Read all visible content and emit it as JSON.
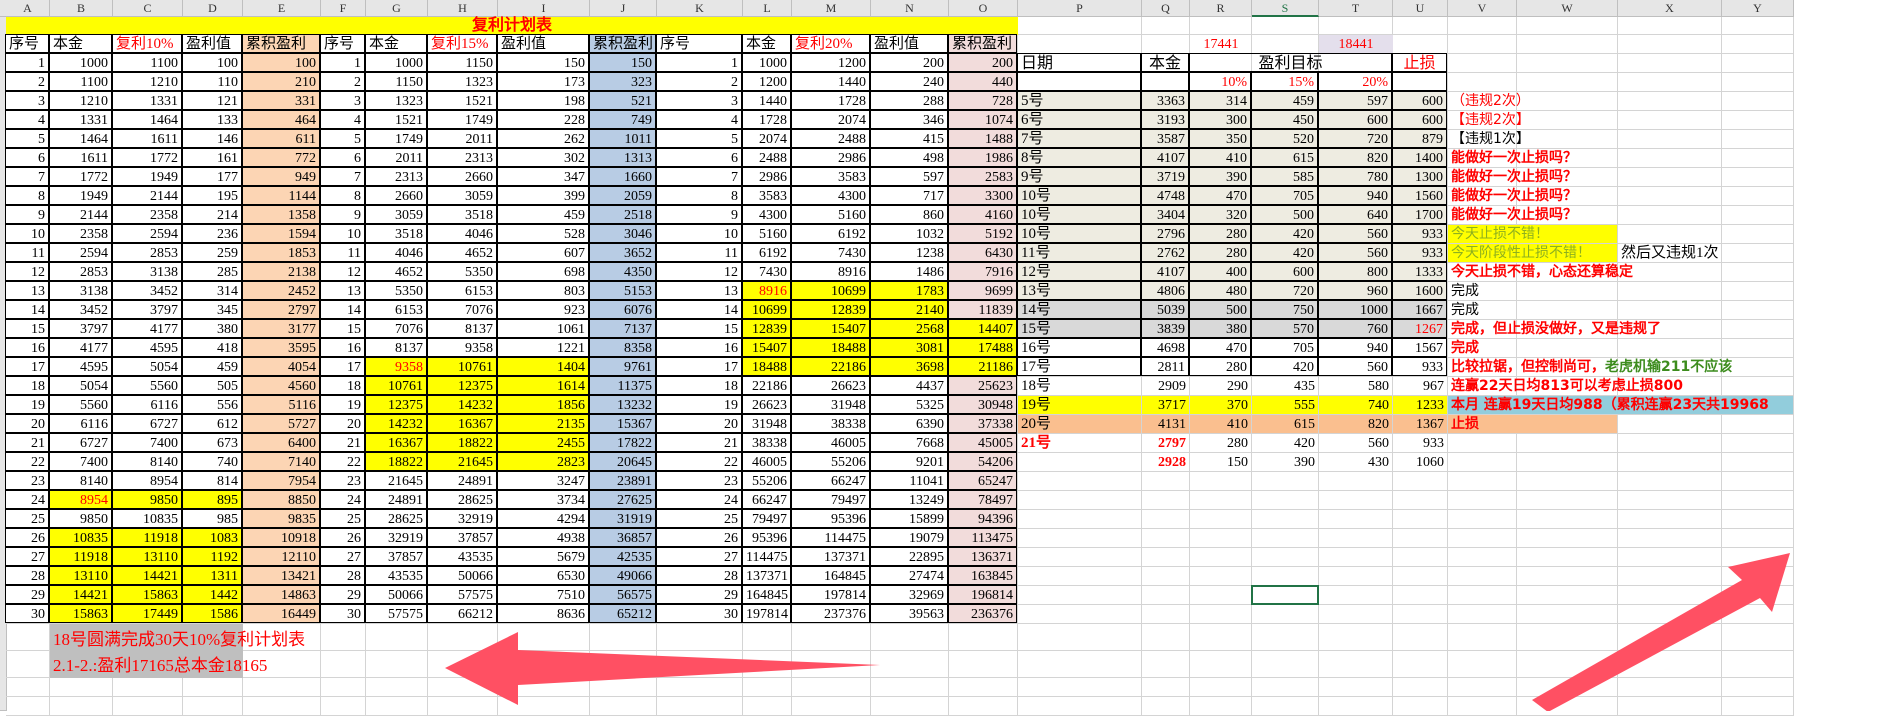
{
  "sheet": {
    "columns": [
      "A",
      "B",
      "C",
      "D",
      "E",
      "F",
      "G",
      "H",
      "I",
      "J",
      "K",
      "L",
      "M",
      "N",
      "O",
      "P",
      "Q",
      "R",
      "S",
      "T",
      "U",
      "V",
      "W",
      "X",
      "Y"
    ],
    "title": "复利计划表",
    "colors": {
      "yellow": "#ffff00",
      "peach": "#fcd5b4",
      "blue": "#b8cce4",
      "pink": "#f2dcdb",
      "beige": "#eeece1",
      "gray": "#d9d9d9",
      "orange": "#fabf8f",
      "lightblue": "#92cddc",
      "selection": "#217346"
    }
  },
  "table1": {
    "headers": [
      "序号",
      "本金",
      "复利10%",
      "盈利值",
      "累积盈利"
    ],
    "seq": [
      "1",
      "2",
      "3",
      "4",
      "5",
      "6",
      "7",
      "8",
      "9",
      "10",
      "11",
      "12",
      "13",
      "14",
      "15",
      "16",
      "17",
      "18",
      "19",
      "20",
      "21",
      "22",
      "23",
      "24",
      "25",
      "26",
      "27",
      "28",
      "29",
      "30"
    ],
    "principal": [
      "1000",
      "1100",
      "1210",
      "1331",
      "1464",
      "1611",
      "1772",
      "1949",
      "2144",
      "2358",
      "2594",
      "2853",
      "3138",
      "3452",
      "3797",
      "4177",
      "4595",
      "5054",
      "5560",
      "6116",
      "6727",
      "7400",
      "8140",
      "8954",
      "9850",
      "10835",
      "11918",
      "13110",
      "14421",
      "15863"
    ],
    "compound": [
      "1100",
      "1210",
      "1331",
      "1464",
      "1611",
      "1772",
      "1949",
      "2144",
      "2358",
      "2594",
      "2853",
      "3138",
      "3452",
      "3797",
      "4177",
      "4595",
      "5054",
      "5560",
      "6116",
      "6727",
      "7400",
      "8140",
      "8954",
      "9850",
      "10835",
      "11918",
      "13110",
      "14421",
      "15863",
      "17449"
    ],
    "profit": [
      "100",
      "110",
      "121",
      "133",
      "146",
      "161",
      "177",
      "195",
      "214",
      "236",
      "259",
      "285",
      "314",
      "345",
      "380",
      "418",
      "459",
      "505",
      "556",
      "612",
      "673",
      "740",
      "814",
      "895",
      "985",
      "1083",
      "1192",
      "1311",
      "1442",
      "1586"
    ],
    "cumulative": [
      "100",
      "210",
      "331",
      "464",
      "611",
      "772",
      "949",
      "1144",
      "1358",
      "1594",
      "1853",
      "2138",
      "2452",
      "2797",
      "3177",
      "3595",
      "4054",
      "4560",
      "5116",
      "5727",
      "6400",
      "7140",
      "7954",
      "8850",
      "9835",
      "10918",
      "12110",
      "13421",
      "14863",
      "16449"
    ],
    "highlight_rows": [
      24,
      26,
      27,
      28,
      29,
      30
    ],
    "red_principal_row": 24
  },
  "table2": {
    "headers": [
      "序号",
      "本金",
      "复利15%",
      "盈利值",
      "累积盈利"
    ],
    "principal": [
      "1000",
      "1150",
      "1323",
      "1521",
      "1749",
      "2011",
      "2313",
      "2660",
      "3059",
      "3518",
      "4046",
      "4652",
      "5350",
      "6153",
      "7076",
      "8137",
      "9358",
      "10761",
      "12375",
      "14232",
      "16367",
      "18822",
      "21645",
      "24891",
      "28625",
      "32919",
      "37857",
      "43535",
      "50066",
      "57575"
    ],
    "compound": [
      "1150",
      "1323",
      "1521",
      "1749",
      "2011",
      "2313",
      "2660",
      "3059",
      "3518",
      "4046",
      "4652",
      "5350",
      "6153",
      "7076",
      "8137",
      "9358",
      "10761",
      "12375",
      "14232",
      "16367",
      "18822",
      "21645",
      "24891",
      "28625",
      "32919",
      "37857",
      "43535",
      "50066",
      "57575",
      "66212"
    ],
    "profit": [
      "150",
      "173",
      "198",
      "228",
      "262",
      "302",
      "347",
      "399",
      "459",
      "528",
      "607",
      "698",
      "803",
      "923",
      "1061",
      "1221",
      "1404",
      "1614",
      "1856",
      "2135",
      "2455",
      "2823",
      "3247",
      "3734",
      "4294",
      "4938",
      "5679",
      "6530",
      "7510",
      "8636"
    ],
    "cumulative": [
      "150",
      "323",
      "521",
      "749",
      "1011",
      "1313",
      "1660",
      "2059",
      "2518",
      "3046",
      "3652",
      "4350",
      "5153",
      "6076",
      "7137",
      "8358",
      "9761",
      "11375",
      "13232",
      "15367",
      "17822",
      "20645",
      "23891",
      "27625",
      "31919",
      "36857",
      "42535",
      "49066",
      "56575",
      "65212"
    ],
    "highlight_rows": [
      17,
      18,
      19,
      20,
      21,
      22
    ],
    "red_principal_row": 17
  },
  "table3": {
    "headers": [
      "序号",
      "本金",
      "复利20%",
      "盈利值",
      "累积盈利"
    ],
    "principal": [
      "1000",
      "1200",
      "1440",
      "1728",
      "2074",
      "2488",
      "2986",
      "3583",
      "4300",
      "5160",
      "6192",
      "7430",
      "8916",
      "10699",
      "12839",
      "15407",
      "18488",
      "22186",
      "26623",
      "31948",
      "38338",
      "46005",
      "55206",
      "66247",
      "79497",
      "95396",
      "114475",
      "137371",
      "164845",
      "197814"
    ],
    "compound": [
      "1200",
      "1440",
      "1728",
      "2074",
      "2488",
      "2986",
      "3583",
      "4300",
      "5160",
      "6192",
      "7430",
      "8916",
      "10699",
      "12839",
      "15407",
      "18488",
      "22186",
      "26623",
      "31948",
      "38338",
      "46005",
      "55206",
      "66247",
      "79497",
      "95396",
      "114475",
      "137371",
      "164845",
      "197814",
      "237376"
    ],
    "profit": [
      "200",
      "240",
      "288",
      "346",
      "415",
      "498",
      "597",
      "717",
      "860",
      "1032",
      "1238",
      "1486",
      "1783",
      "2140",
      "2568",
      "3081",
      "3698",
      "4437",
      "5325",
      "6390",
      "7668",
      "9201",
      "11041",
      "13249",
      "15899",
      "19079",
      "22895",
      "27474",
      "32969",
      "39563"
    ],
    "cumulative": [
      "200",
      "440",
      "728",
      "1074",
      "1488",
      "1986",
      "2583",
      "3300",
      "4160",
      "5192",
      "6430",
      "7916",
      "9699",
      "11839",
      "14407",
      "17488",
      "21186",
      "25623",
      "30948",
      "37338",
      "45005",
      "54206",
      "65247",
      "78497",
      "94396",
      "113475",
      "136371",
      "163845",
      "196814",
      "236376"
    ],
    "highlight_rows": [
      13,
      14,
      15,
      16,
      17
    ],
    "cumulative_highlight_rows": [
      15,
      16,
      17
    ],
    "red_principal_row": 13
  },
  "summary": {
    "total_a": "17441",
    "total_b": "18441"
  },
  "daily": {
    "headers": {
      "date": "日期",
      "principal": "本金",
      "target": "盈利目标",
      "stop": "止损"
    },
    "percents": [
      "10%",
      "15%",
      "20%"
    ],
    "rows": [
      {
        "date": "5号",
        "principal": "3363",
        "p10": "314",
        "p15": "459",
        "p20": "597",
        "stop": "600",
        "style": "beige"
      },
      {
        "date": "6号",
        "principal": "3193",
        "p10": "300",
        "p15": "450",
        "p20": "600",
        "stop": "600",
        "style": "beige"
      },
      {
        "date": "7号",
        "principal": "3587",
        "p10": "350",
        "p15": "520",
        "p20": "720",
        "stop": "879",
        "style": "beige"
      },
      {
        "date": "8号",
        "principal": "4107",
        "p10": "410",
        "p15": "615",
        "p20": "820",
        "stop": "1400",
        "style": "beige"
      },
      {
        "date": "9号",
        "principal": "3719",
        "p10": "390",
        "p15": "585",
        "p20": "780",
        "stop": "1300",
        "style": "beige"
      },
      {
        "date": "10号",
        "principal": "4748",
        "p10": "470",
        "p15": "705",
        "p20": "940",
        "stop": "1560",
        "style": "beige"
      },
      {
        "date": "10号",
        "principal": "3404",
        "p10": "320",
        "p15": "500",
        "p20": "640",
        "stop": "1700",
        "style": "beige"
      },
      {
        "date": "10号",
        "principal": "2796",
        "p10": "280",
        "p15": "420",
        "p20": "560",
        "stop": "933",
        "style": "beige"
      },
      {
        "date": "11号",
        "principal": "2762",
        "p10": "280",
        "p15": "420",
        "p20": "560",
        "stop": "933",
        "style": "beige"
      },
      {
        "date": "12号",
        "principal": "4107",
        "p10": "400",
        "p15": "600",
        "p20": "800",
        "stop": "1333",
        "style": "beige"
      },
      {
        "date": "13号",
        "principal": "4806",
        "p10": "480",
        "p15": "720",
        "p20": "960",
        "stop": "1600",
        "style": "beige"
      },
      {
        "date": "14号",
        "principal": "5039",
        "p10": "500",
        "p15": "750",
        "p20": "1000",
        "stop": "1667",
        "style": "gray"
      },
      {
        "date": "15号",
        "principal": "3839",
        "p10": "380",
        "p15": "570",
        "p20": "760",
        "stop": "1267",
        "style": "gray",
        "red_stop": true
      },
      {
        "date": "16号",
        "principal": "4698",
        "p10": "470",
        "p15": "705",
        "p20": "940",
        "stop": "1567",
        "style": "white"
      },
      {
        "date": "17号",
        "principal": "2811",
        "p10": "280",
        "p15": "420",
        "p20": "560",
        "stop": "933",
        "style": "white"
      },
      {
        "date": "18号",
        "principal": "2909",
        "p10": "290",
        "p15": "435",
        "p20": "580",
        "stop": "967",
        "style": "white"
      },
      {
        "date": "19号",
        "principal": "3717",
        "p10": "370",
        "p15": "555",
        "p20": "740",
        "stop": "1233",
        "style": "yellow"
      },
      {
        "date": "20号",
        "principal": "4131",
        "p10": "410",
        "p15": "615",
        "p20": "820",
        "stop": "1367",
        "style": "orange"
      },
      {
        "date": "21号",
        "principal": "2797",
        "p10": "280",
        "p15": "420",
        "p20": "560",
        "stop": "933",
        "style": "white",
        "red_bold": true
      },
      {
        "date": "",
        "principal": "2928",
        "p10": "150",
        "p15": "390",
        "p20": "430",
        "stop": "1060",
        "style": "white",
        "red_bold_principal": true
      }
    ]
  },
  "notes": [
    {
      "text": "（违规2次）",
      "color": "#ff0000"
    },
    {
      "text": "【违规2次】",
      "color": "#ff0000"
    },
    {
      "text": "【违规1次】",
      "color": "#000000"
    },
    {
      "text": "能做好一次止损吗？",
      "color": "#ff0000",
      "bold": true
    },
    {
      "text": "能做好一次止损吗？",
      "color": "#ff0000",
      "bold": true
    },
    {
      "text": "能做好一次止损吗？",
      "color": "#ff0000",
      "bold": true
    },
    {
      "text": "能做好一次止损吗？",
      "color": "#ff0000",
      "bold": true
    },
    {
      "text": "今天止损不错！",
      "color": "#8db01e",
      "bg": "yellow"
    },
    {
      "text": "今天阶段性止损不错！",
      "color": "#8db01e",
      "bg": "yellow",
      "extra": "然后又违规1次"
    },
    {
      "text": "今天止损不错，心态还算稳定",
      "color": "#ff0000",
      "bold": true
    },
    {
      "text": "完成",
      "color": "#000000"
    },
    {
      "text": "完成",
      "color": "#000000"
    },
    {
      "text": "完成，但止损没做好，又是违规了",
      "color": "#ff0000",
      "bold": true
    },
    {
      "text": "完成",
      "color": "#ff0000",
      "bold": true
    },
    {
      "text": "比较拉锯，但控制尚可，",
      "color": "#ff0000",
      "bold": true,
      "green": "老虎机输211不应该"
    },
    {
      "text": "连赢22天日均813可以考虑止损800",
      "color": "#ff0000",
      "bold": true
    },
    {
      "text": "本月 连赢19天日均988（累积连赢23天共19968",
      "color": "#ff0000",
      "bold": true,
      "bg": "lightblue"
    },
    {
      "text": "止损",
      "color": "#ff0000",
      "bold": true,
      "bg": "orange"
    }
  ],
  "footer": {
    "line1": "18号圆满完成30天10%复利计划表",
    "line2": "2.1-2.:盈利17165总本金18165"
  }
}
